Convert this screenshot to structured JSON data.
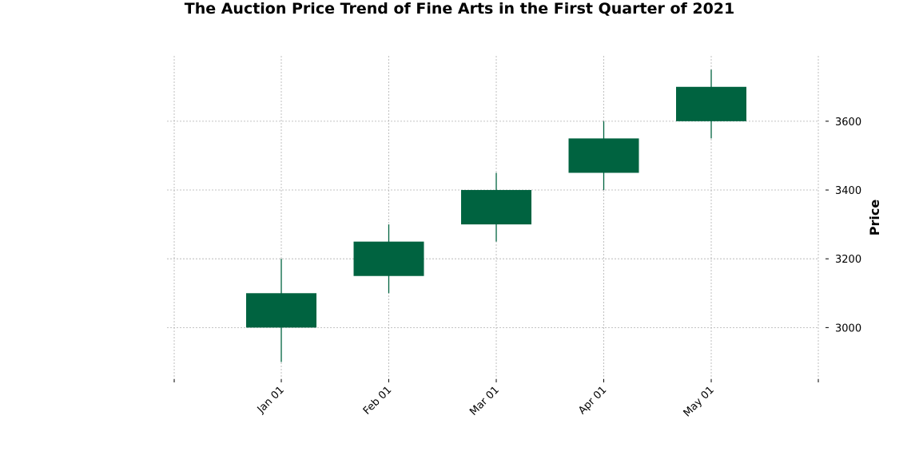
{
  "chart_data": {
    "type": "candlestick",
    "title": "The Auction Price Trend of Fine Arts in the First Quarter of 2021",
    "xlabel": "",
    "ylabel": "Price",
    "x_ticks": [
      "Jan 01",
      "Feb 01",
      "Mar 01",
      "Apr 01",
      "May 01"
    ],
    "y_ticks": [
      3000,
      3200,
      3400,
      3600
    ],
    "ylim": [
      2850,
      3790
    ],
    "grid": true,
    "candle_color": "#006340",
    "candles": [
      {
        "date": "Jan 01",
        "open": 3000,
        "high": 3200,
        "low": 2900,
        "close": 3100
      },
      {
        "date": "Feb 01",
        "open": 3150,
        "high": 3300,
        "low": 3100,
        "close": 3250
      },
      {
        "date": "Mar 01",
        "open": 3300,
        "high": 3450,
        "low": 3250,
        "close": 3400
      },
      {
        "date": "Apr 01",
        "open": 3450,
        "high": 3600,
        "low": 3400,
        "close": 3550
      },
      {
        "date": "May 01",
        "open": 3600,
        "high": 3750,
        "low": 3550,
        "close": 3700
      }
    ]
  }
}
